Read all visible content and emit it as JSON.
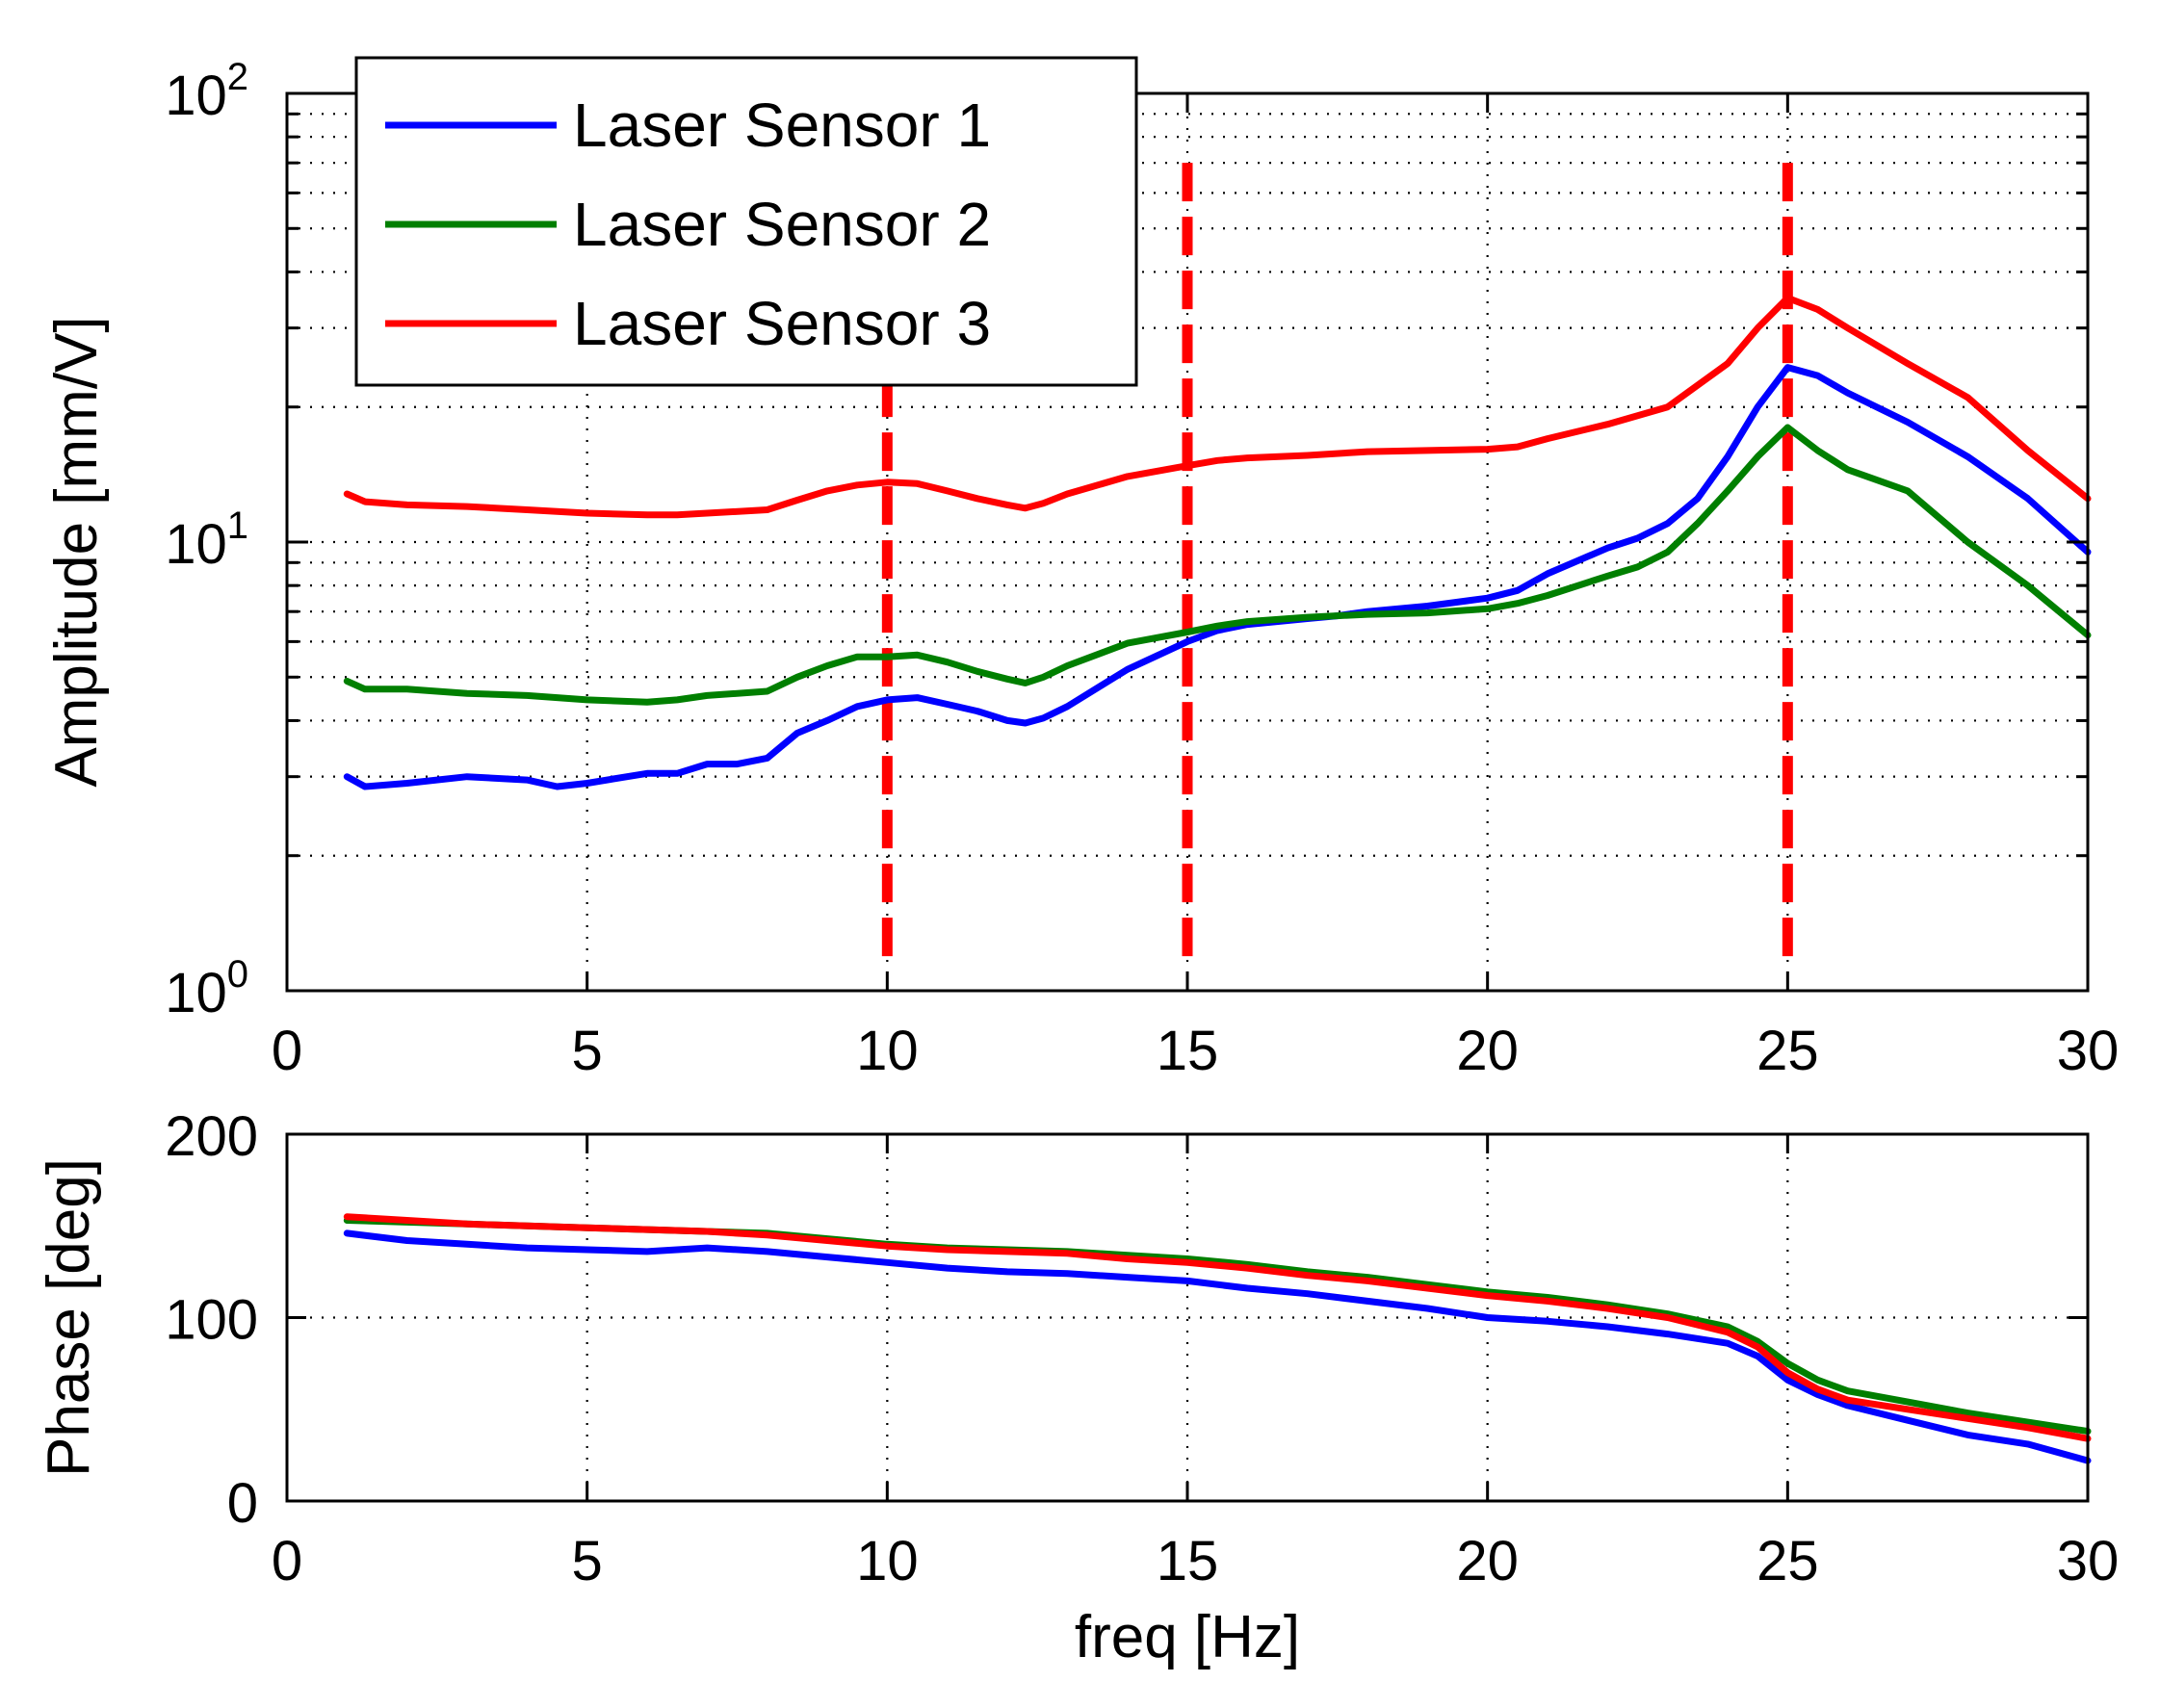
{
  "chart_data": [
    {
      "type": "line",
      "id": "amplitude",
      "yscale": "log",
      "xlabel": "",
      "ylabel": "Amplitude [mm/V]",
      "xlim": [
        0,
        30
      ],
      "ylim": [
        1,
        100
      ],
      "xticks": [
        0,
        5,
        10,
        15,
        20,
        25,
        30
      ],
      "xtick_labels": [
        "0",
        "5",
        "10",
        "15",
        "20",
        "25",
        "30"
      ],
      "yticks": [
        {
          "value": 1,
          "base": "10",
          "exp": "0"
        },
        {
          "value": 10,
          "base": "10",
          "exp": "1"
        },
        {
          "value": 100,
          "base": "10",
          "exp": "2"
        }
      ],
      "grid": true,
      "legend": {
        "placement": "top-left",
        "entries": [
          "Laser Sensor 1",
          "Laser Sensor 2",
          "Laser Sensor 3"
        ]
      },
      "vlines": [
        {
          "x": 10,
          "color": "#ff0000",
          "style": "dashed"
        },
        {
          "x": 15,
          "color": "#ff0000",
          "style": "dashed"
        },
        {
          "x": 25,
          "color": "#ff0000",
          "style": "dashed"
        }
      ],
      "series": [
        {
          "name": "Laser Sensor 1",
          "color": "#0000ff",
          "x": [
            1,
            1.3,
            2,
            3,
            4,
            4.5,
            5,
            6,
            6.5,
            7,
            7.5,
            8,
            8.5,
            9,
            9.5,
            10,
            10.5,
            11,
            11.5,
            12,
            12.3,
            12.6,
            13,
            14,
            15,
            15.5,
            16,
            17,
            17.5,
            18,
            19,
            20,
            20.5,
            21,
            22,
            22.5,
            23,
            23.5,
            24,
            24.5,
            25,
            25.5,
            26,
            27,
            28,
            29,
            30
          ],
          "y": [
            3.0,
            2.85,
            2.9,
            3.0,
            2.95,
            2.85,
            2.9,
            3.05,
            3.05,
            3.2,
            3.2,
            3.3,
            3.75,
            4.0,
            4.3,
            4.45,
            4.5,
            4.35,
            4.2,
            4.0,
            3.95,
            4.05,
            4.3,
            5.2,
            6.0,
            6.35,
            6.55,
            6.75,
            6.85,
            7.0,
            7.2,
            7.5,
            7.8,
            8.5,
            9.7,
            10.2,
            11.0,
            12.5,
            15.5,
            20.0,
            24.5,
            23.5,
            21.5,
            18.5,
            15.5,
            12.5,
            9.5
          ]
        },
        {
          "name": "Laser Sensor 2",
          "color": "#007f00",
          "x": [
            1,
            1.3,
            2,
            3,
            4,
            5,
            6,
            6.5,
            7,
            8,
            8.5,
            9,
            9.5,
            10,
            10.5,
            11,
            11.5,
            12,
            12.3,
            12.6,
            13,
            14,
            15,
            15.5,
            16,
            17,
            18,
            19,
            20,
            20.5,
            21,
            22,
            22.5,
            23,
            23.5,
            24,
            24.5,
            25,
            25.5,
            26,
            27,
            28,
            29,
            30
          ],
          "y": [
            4.9,
            4.7,
            4.7,
            4.6,
            4.55,
            4.45,
            4.4,
            4.45,
            4.55,
            4.65,
            5.0,
            5.3,
            5.55,
            5.55,
            5.6,
            5.4,
            5.15,
            4.95,
            4.85,
            5.0,
            5.3,
            5.95,
            6.3,
            6.5,
            6.65,
            6.8,
            6.9,
            6.95,
            7.1,
            7.3,
            7.6,
            8.4,
            8.8,
            9.5,
            11.0,
            13.0,
            15.5,
            18.0,
            16.0,
            14.5,
            13.0,
            10.0,
            8.0,
            6.2
          ]
        },
        {
          "name": "Laser Sensor 3",
          "color": "#ff0000",
          "x": [
            1,
            1.3,
            2,
            3,
            4,
            5,
            6,
            6.5,
            7,
            8,
            8.5,
            9,
            9.5,
            10,
            10.5,
            11,
            11.5,
            12,
            12.3,
            12.6,
            13,
            14,
            15,
            15.5,
            16,
            17,
            18,
            19,
            20,
            20.5,
            21,
            22,
            23,
            24,
            24.5,
            25,
            25.5,
            26,
            27,
            28,
            29,
            30
          ],
          "y": [
            12.8,
            12.3,
            12.1,
            12.0,
            11.8,
            11.6,
            11.5,
            11.5,
            11.6,
            11.8,
            12.4,
            13.0,
            13.4,
            13.6,
            13.5,
            13.0,
            12.5,
            12.1,
            11.9,
            12.2,
            12.8,
            14.0,
            14.8,
            15.2,
            15.4,
            15.6,
            15.9,
            16.0,
            16.1,
            16.3,
            17.0,
            18.3,
            20.0,
            25.0,
            30.0,
            35.0,
            33.0,
            30.0,
            25.0,
            21.0,
            16.0,
            12.5
          ]
        }
      ]
    },
    {
      "type": "line",
      "id": "phase",
      "yscale": "linear",
      "xlabel": "freq [Hz]",
      "ylabel": "Phase [deg]",
      "xlim": [
        0,
        30
      ],
      "ylim": [
        0,
        200
      ],
      "xticks": [
        0,
        5,
        10,
        15,
        20,
        25,
        30
      ],
      "xtick_labels": [
        "0",
        "5",
        "10",
        "15",
        "20",
        "25",
        "30"
      ],
      "yticks": [
        0,
        100,
        200
      ],
      "ytick_labels": [
        "0",
        "100",
        "200"
      ],
      "grid": true,
      "series": [
        {
          "name": "Laser Sensor 1",
          "color": "#0000ff",
          "x": [
            1,
            2,
            3,
            4,
            5,
            6,
            7,
            8,
            9,
            10,
            11,
            12,
            13,
            14,
            15,
            16,
            17,
            18,
            19,
            20,
            21,
            22,
            23,
            24,
            24.5,
            25,
            25.5,
            26,
            27,
            28,
            29,
            30
          ],
          "y": [
            146,
            142,
            140,
            138,
            137,
            136,
            138,
            136,
            133,
            130,
            127,
            125,
            124,
            122,
            120,
            116,
            113,
            109,
            105,
            100,
            98,
            95,
            91,
            86,
            79,
            66,
            58,
            52,
            44,
            36,
            31,
            22
          ]
        },
        {
          "name": "Laser Sensor 2",
          "color": "#007f00",
          "x": [
            1,
            2,
            3,
            4,
            5,
            6,
            7,
            8,
            9,
            10,
            11,
            12,
            13,
            14,
            15,
            16,
            17,
            18,
            19,
            20,
            21,
            22,
            23,
            24,
            24.5,
            25,
            25.5,
            26,
            27,
            28,
            29,
            30
          ],
          "y": [
            153,
            152,
            151,
            150,
            149,
            148,
            147,
            146,
            143,
            140,
            138,
            137,
            136,
            134,
            132,
            129,
            125,
            122,
            118,
            114,
            111,
            107,
            102,
            95,
            87,
            75,
            66,
            60,
            54,
            48,
            43,
            38
          ]
        },
        {
          "name": "Laser Sensor 3",
          "color": "#ff0000",
          "x": [
            1,
            2,
            3,
            4,
            5,
            6,
            7,
            8,
            9,
            10,
            11,
            12,
            13,
            14,
            15,
            16,
            17,
            18,
            19,
            20,
            21,
            22,
            23,
            24,
            24.5,
            25,
            25.5,
            26,
            27,
            28,
            29,
            30
          ],
          "y": [
            155,
            153,
            151,
            150,
            149,
            148,
            147,
            145,
            142,
            139,
            137,
            136,
            135,
            132,
            130,
            127,
            123,
            120,
            116,
            112,
            109,
            105,
            100,
            92,
            84,
            70,
            61,
            55,
            50,
            45,
            40,
            34
          ]
        }
      ]
    }
  ]
}
